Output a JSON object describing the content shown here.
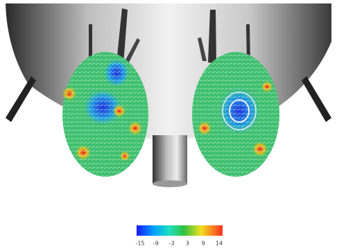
{
  "colorbar": {
    "ticks": [
      -15,
      -9,
      -3,
      3,
      9,
      14
    ]
  }
}
